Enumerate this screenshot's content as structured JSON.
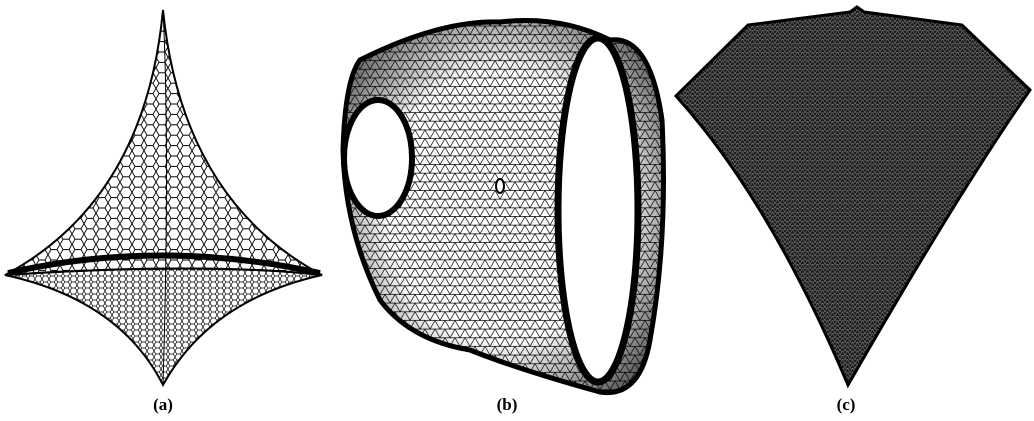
{
  "figure": {
    "subfigures": [
      {
        "label": "(a)"
      },
      {
        "label": "(b)"
      },
      {
        "label": "(c)"
      }
    ]
  }
}
